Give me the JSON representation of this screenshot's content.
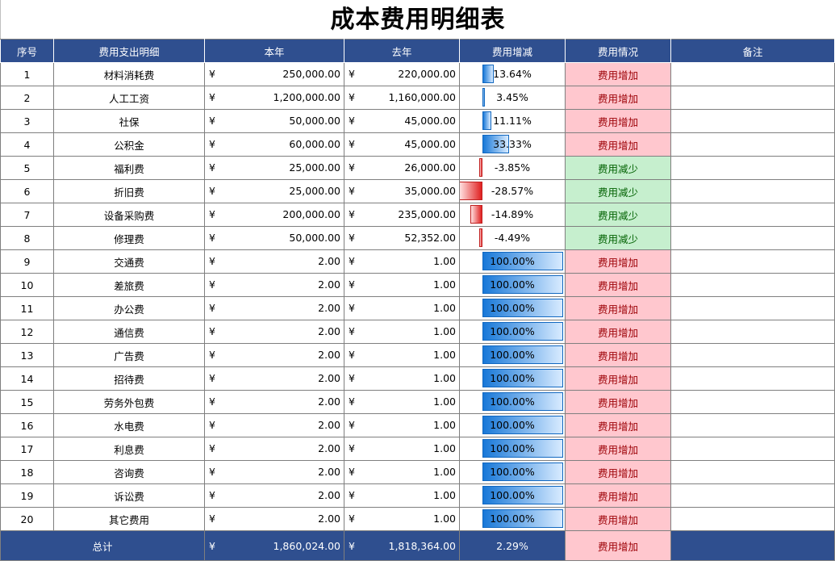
{
  "title": "成本费用明细表",
  "headers": [
    "序号",
    "费用支出明细",
    "本年",
    "去年",
    "费用增减",
    "费用情况",
    "备注"
  ],
  "currency": "¥",
  "rows": [
    {
      "no": "1",
      "item": "材料消耗费",
      "this_year": "250,000.00",
      "last_year": "220,000.00",
      "change": "13.64%",
      "change_value": 13.64,
      "status": "费用增加"
    },
    {
      "no": "2",
      "item": "人工工资",
      "this_year": "1,200,000.00",
      "last_year": "1,160,000.00",
      "change": "3.45%",
      "change_value": 3.45,
      "status": "费用增加"
    },
    {
      "no": "3",
      "item": "社保",
      "this_year": "50,000.00",
      "last_year": "45,000.00",
      "change": "11.11%",
      "change_value": 11.11,
      "status": "费用增加"
    },
    {
      "no": "4",
      "item": "公积金",
      "this_year": "60,000.00",
      "last_year": "45,000.00",
      "change": "33.33%",
      "change_value": 33.33,
      "status": "费用增加"
    },
    {
      "no": "5",
      "item": "福利费",
      "this_year": "25,000.00",
      "last_year": "26,000.00",
      "change": "-3.85%",
      "change_value": -3.85,
      "status": "费用减少"
    },
    {
      "no": "6",
      "item": "折旧费",
      "this_year": "25,000.00",
      "last_year": "35,000.00",
      "change": "-28.57%",
      "change_value": -28.57,
      "status": "费用减少"
    },
    {
      "no": "7",
      "item": "设备采购费",
      "this_year": "200,000.00",
      "last_year": "235,000.00",
      "change": "-14.89%",
      "change_value": -14.89,
      "status": "费用减少"
    },
    {
      "no": "8",
      "item": "修理费",
      "this_year": "50,000.00",
      "last_year": "52,352.00",
      "change": "-4.49%",
      "change_value": -4.49,
      "status": "费用减少"
    },
    {
      "no": "9",
      "item": "交通费",
      "this_year": "2.00",
      "last_year": "1.00",
      "change": "100.00%",
      "change_value": 100,
      "status": "费用增加"
    },
    {
      "no": "10",
      "item": "差旅费",
      "this_year": "2.00",
      "last_year": "1.00",
      "change": "100.00%",
      "change_value": 100,
      "status": "费用增加"
    },
    {
      "no": "11",
      "item": "办公费",
      "this_year": "2.00",
      "last_year": "1.00",
      "change": "100.00%",
      "change_value": 100,
      "status": "费用增加"
    },
    {
      "no": "12",
      "item": "通信费",
      "this_year": "2.00",
      "last_year": "1.00",
      "change": "100.00%",
      "change_value": 100,
      "status": "费用增加"
    },
    {
      "no": "13",
      "item": "广告费",
      "this_year": "2.00",
      "last_year": "1.00",
      "change": "100.00%",
      "change_value": 100,
      "status": "费用增加"
    },
    {
      "no": "14",
      "item": "招待费",
      "this_year": "2.00",
      "last_year": "1.00",
      "change": "100.00%",
      "change_value": 100,
      "status": "费用增加"
    },
    {
      "no": "15",
      "item": "劳务外包费",
      "this_year": "2.00",
      "last_year": "1.00",
      "change": "100.00%",
      "change_value": 100,
      "status": "费用增加"
    },
    {
      "no": "16",
      "item": "水电费",
      "this_year": "2.00",
      "last_year": "1.00",
      "change": "100.00%",
      "change_value": 100,
      "status": "费用增加"
    },
    {
      "no": "17",
      "item": "利息费",
      "this_year": "2.00",
      "last_year": "1.00",
      "change": "100.00%",
      "change_value": 100,
      "status": "费用增加"
    },
    {
      "no": "18",
      "item": "咨询费",
      "this_year": "2.00",
      "last_year": "1.00",
      "change": "100.00%",
      "change_value": 100,
      "status": "费用增加"
    },
    {
      "no": "19",
      "item": "诉讼费",
      "this_year": "2.00",
      "last_year": "1.00",
      "change": "100.00%",
      "change_value": 100,
      "status": "费用增加"
    },
    {
      "no": "20",
      "item": "其它费用",
      "this_year": "2.00",
      "last_year": "1.00",
      "change": "100.00%",
      "change_value": 100,
      "status": "费用增加"
    }
  ],
  "total": {
    "label": "总计",
    "this_year": "1,860,024.00",
    "last_year": "1,818,364.00",
    "change": "2.29%",
    "status": "费用增加"
  },
  "colors": {
    "header_bg": "#2f4f8f",
    "increase_bg": "#ffc7ce",
    "increase_text": "#9c0006",
    "decrease_bg": "#c6efce",
    "decrease_text": "#006100",
    "bar_positive": "#1878d8",
    "bar_negative": "#e02020"
  }
}
